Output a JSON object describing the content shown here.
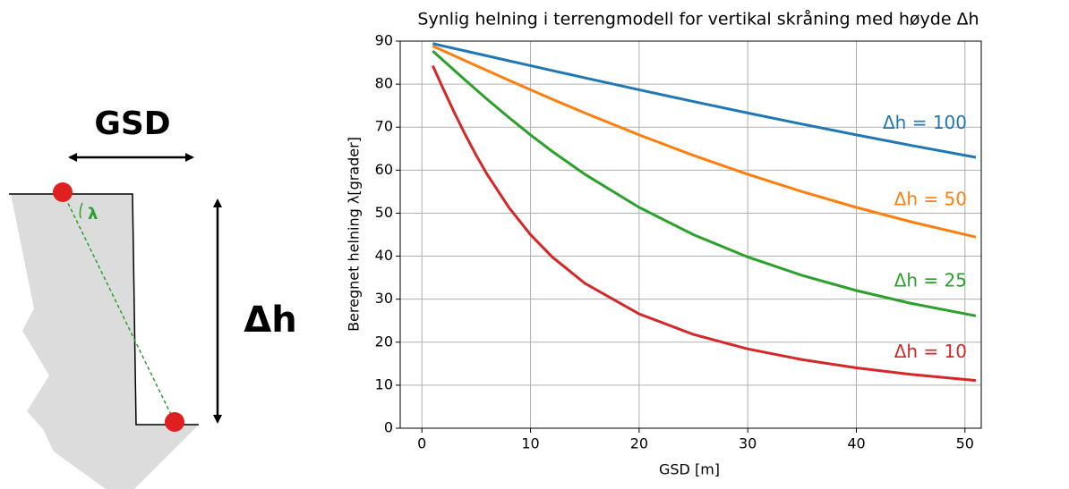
{
  "diagram": {
    "gsd_label": "GSD",
    "dh_label": "Δh",
    "lambda_label": "λ"
  },
  "chart_data": {
    "type": "line",
    "title": "Synlig helning i terrengmodell for vertikal skråning med høyde Δh",
    "xlabel": "GSD [m]",
    "ylabel": "Beregnet helning λ[grader]",
    "x": [
      1,
      2,
      3,
      4,
      5,
      6,
      8,
      10,
      12,
      15,
      20,
      25,
      30,
      35,
      40,
      45,
      51
    ],
    "series": [
      {
        "name": "Δh = 100",
        "color": "#1f77b4",
        "values": [
          89.43,
          88.85,
          88.28,
          87.71,
          87.14,
          86.57,
          85.43,
          84.29,
          83.16,
          81.47,
          78.69,
          75.96,
          73.3,
          70.71,
          68.2,
          65.77,
          62.98
        ]
      },
      {
        "name": "Δh = 50",
        "color": "#ff7f0e",
        "values": [
          88.85,
          87.71,
          86.57,
          85.43,
          84.29,
          83.16,
          80.91,
          78.69,
          76.5,
          73.3,
          68.2,
          63.43,
          59.04,
          55.01,
          51.34,
          48.01,
          44.44
        ]
      },
      {
        "name": "Δh = 25",
        "color": "#2ca02c",
        "values": [
          87.71,
          85.43,
          83.16,
          80.91,
          78.69,
          76.5,
          72.26,
          68.2,
          64.36,
          59.04,
          51.34,
          45.0,
          39.81,
          35.54,
          32.01,
          29.05,
          26.12
        ]
      },
      {
        "name": "Δh = 10",
        "color": "#d62728",
        "values": [
          84.29,
          78.69,
          73.3,
          68.2,
          63.43,
          59.04,
          51.34,
          45.0,
          39.81,
          33.69,
          26.57,
          21.8,
          18.43,
          15.95,
          14.04,
          12.53,
          11.09
        ]
      }
    ],
    "xlim": [
      -2,
      51.5
    ],
    "ylim": [
      0,
      90
    ],
    "xticks": [
      0,
      10,
      20,
      30,
      40,
      50
    ],
    "yticks": [
      0,
      10,
      20,
      30,
      40,
      50,
      60,
      70,
      80,
      90
    ],
    "grid": true
  }
}
